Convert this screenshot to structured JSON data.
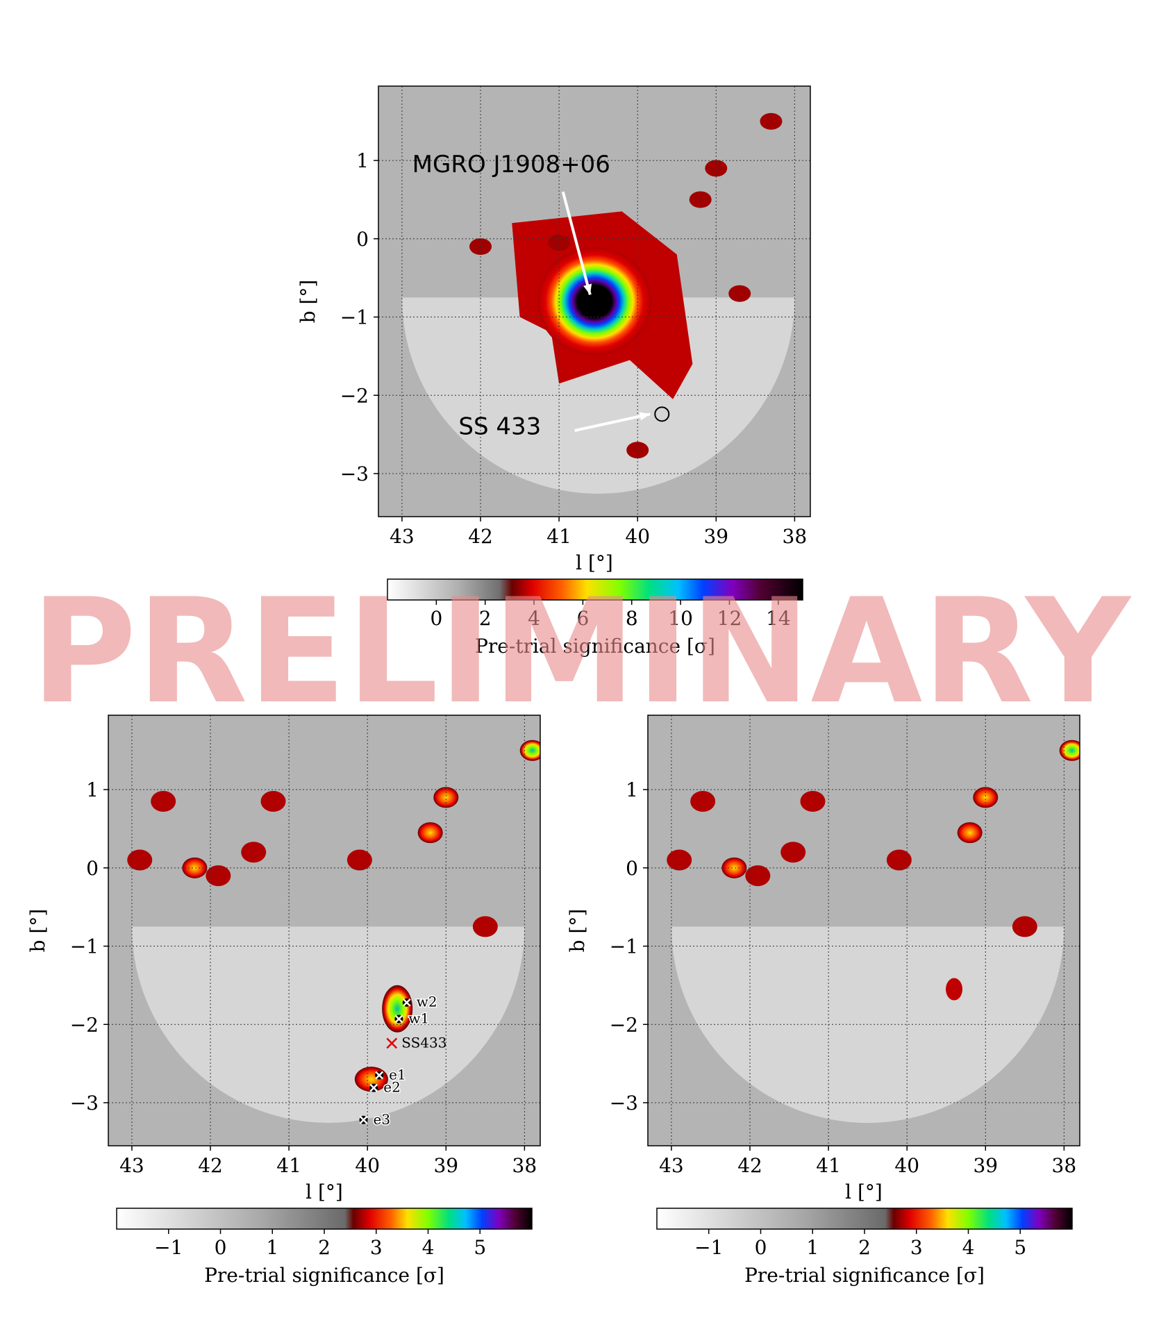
{
  "watermark": "PRELIMINARY",
  "chart_data": [
    {
      "type": "heatmap",
      "id": "top",
      "xlabel": "l [°]",
      "ylabel": "b [°]",
      "xlim": [
        43.3,
        37.8
      ],
      "ylim": [
        -3.55,
        1.95
      ],
      "xticks": [
        43,
        42,
        41,
        40,
        39,
        38
      ],
      "yticks": [
        1,
        0,
        -1,
        -2,
        -3
      ],
      "grid": true,
      "colorbar": {
        "label": "Pre-trial significance [σ]",
        "range": [
          -2,
          15
        ],
        "ticks": [
          0,
          2,
          4,
          6,
          8,
          10,
          12,
          14
        ]
      },
      "annotations": [
        {
          "text": "MGRO J1908+06",
          "x": 40.6,
          "y": -0.75
        },
        {
          "text": "SS 433",
          "x": 39.7,
          "y": -2.24
        }
      ]
    },
    {
      "type": "heatmap",
      "id": "bottom-left",
      "xlabel": "l [°]",
      "ylabel": "b [°]",
      "xlim": [
        43.3,
        37.8
      ],
      "ylim": [
        -3.55,
        1.95
      ],
      "xticks": [
        43,
        42,
        41,
        40,
        39,
        38
      ],
      "yticks": [
        1,
        0,
        -1,
        -2,
        -3
      ],
      "grid": true,
      "colorbar": {
        "label": "Pre-trial significance [σ]",
        "range": [
          -2,
          6
        ],
        "ticks": [
          -1,
          0,
          1,
          2,
          3,
          4,
          5
        ]
      },
      "markers": [
        {
          "label": "w2",
          "x": 39.5,
          "y": -1.72
        },
        {
          "label": "w1",
          "x": 39.6,
          "y": -1.93
        },
        {
          "label": "SS433",
          "x": 39.69,
          "y": -2.24
        },
        {
          "label": "e1",
          "x": 39.85,
          "y": -2.65
        },
        {
          "label": "e2",
          "x": 39.92,
          "y": -2.81
        },
        {
          "label": "e3",
          "x": 40.05,
          "y": -3.22
        }
      ]
    },
    {
      "type": "heatmap",
      "id": "bottom-right",
      "xlabel": "l [°]",
      "ylabel": "b [°]",
      "xlim": [
        43.3,
        37.8
      ],
      "ylim": [
        -3.55,
        1.95
      ],
      "xticks": [
        43,
        42,
        41,
        40,
        39,
        38
      ],
      "yticks": [
        1,
        0,
        -1,
        -2,
        -3
      ],
      "grid": true,
      "colorbar": {
        "label": "Pre-trial significance [σ]",
        "range": [
          -2,
          6
        ],
        "ticks": [
          -1,
          0,
          1,
          2,
          3,
          4,
          5
        ]
      }
    }
  ]
}
